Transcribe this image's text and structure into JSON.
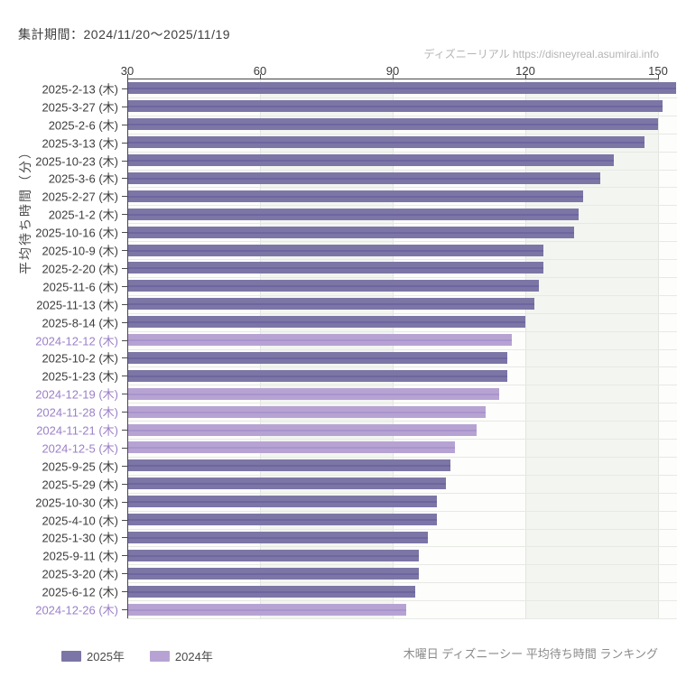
{
  "header": {
    "period": "集計期間：2024/11/20～2025/11/19"
  },
  "watermark": {
    "text": "ディズニーリアル https://disneyreal.asumirai.info"
  },
  "footer": {
    "caption": "木曜日 ディズニーシー 平均待ち時間 ランキング"
  },
  "legend": {
    "items": [
      {
        "label": "2025年",
        "color": "#7c76a6"
      },
      {
        "label": "2024年",
        "color": "#b7a3d3"
      }
    ]
  },
  "colors": {
    "bar_2025": "#7c76a6",
    "bar_2025_stripe": "#6d66a0",
    "bar_2024": "#b7a3d3",
    "bar_2024_stripe": "#a994cc",
    "label_2025": "#3c3c3c",
    "label_2024": "#9c80c8",
    "axis_line": "#4a4a4a",
    "grid_line_v": "#e3e5e1",
    "grid_line_h": "#e7e9e5",
    "band_light": "#fdfdfb",
    "band_gray": "#f3f5f1"
  },
  "chart_data": {
    "type": "bar",
    "orientation": "horizontal",
    "title": "木曜日 ディズニーシー 平均待ち時間 ランキング",
    "xlabel": "",
    "ylabel": "平均待ち時間（分）",
    "x_axis": {
      "position": "top",
      "min": 30,
      "max": 154,
      "ticks": [
        30,
        60,
        90,
        120,
        150
      ]
    },
    "grid": true,
    "legend_position": "bottom-left",
    "series": [
      {
        "name": "2025年",
        "color": "#7c76a6"
      },
      {
        "name": "2024年",
        "color": "#b7a3d3"
      }
    ],
    "rows": [
      {
        "label": "2025-2-13 (木)",
        "value": 154,
        "year": "2025"
      },
      {
        "label": "2025-3-27 (木)",
        "value": 151,
        "year": "2025"
      },
      {
        "label": "2025-2-6 (木)",
        "value": 150,
        "year": "2025"
      },
      {
        "label": "2025-3-13 (木)",
        "value": 147,
        "year": "2025"
      },
      {
        "label": "2025-10-23 (木)",
        "value": 140,
        "year": "2025"
      },
      {
        "label": "2025-3-6 (木)",
        "value": 137,
        "year": "2025"
      },
      {
        "label": "2025-2-27 (木)",
        "value": 133,
        "year": "2025"
      },
      {
        "label": "2025-1-2 (木)",
        "value": 132,
        "year": "2025"
      },
      {
        "label": "2025-10-16 (木)",
        "value": 131,
        "year": "2025"
      },
      {
        "label": "2025-10-9 (木)",
        "value": 124,
        "year": "2025"
      },
      {
        "label": "2025-2-20 (木)",
        "value": 124,
        "year": "2025"
      },
      {
        "label": "2025-11-6 (木)",
        "value": 123,
        "year": "2025"
      },
      {
        "label": "2025-11-13 (木)",
        "value": 122,
        "year": "2025"
      },
      {
        "label": "2025-8-14 (木)",
        "value": 120,
        "year": "2025"
      },
      {
        "label": "2024-12-12 (木)",
        "value": 117,
        "year": "2024"
      },
      {
        "label": "2025-10-2 (木)",
        "value": 116,
        "year": "2025"
      },
      {
        "label": "2025-1-23 (木)",
        "value": 116,
        "year": "2025"
      },
      {
        "label": "2024-12-19 (木)",
        "value": 114,
        "year": "2024"
      },
      {
        "label": "2024-11-28 (木)",
        "value": 111,
        "year": "2024"
      },
      {
        "label": "2024-11-21 (木)",
        "value": 109,
        "year": "2024"
      },
      {
        "label": "2024-12-5 (木)",
        "value": 104,
        "year": "2024"
      },
      {
        "label": "2025-9-25 (木)",
        "value": 103,
        "year": "2025"
      },
      {
        "label": "2025-5-29 (木)",
        "value": 102,
        "year": "2025"
      },
      {
        "label": "2025-10-30 (木)",
        "value": 100,
        "year": "2025"
      },
      {
        "label": "2025-4-10 (木)",
        "value": 100,
        "year": "2025"
      },
      {
        "label": "2025-1-30 (木)",
        "value": 98,
        "year": "2025"
      },
      {
        "label": "2025-9-11 (木)",
        "value": 96,
        "year": "2025"
      },
      {
        "label": "2025-3-20 (木)",
        "value": 96,
        "year": "2025"
      },
      {
        "label": "2025-6-12 (木)",
        "value": 95,
        "year": "2025"
      },
      {
        "label": "2024-12-26 (木)",
        "value": 93,
        "year": "2024"
      }
    ]
  }
}
